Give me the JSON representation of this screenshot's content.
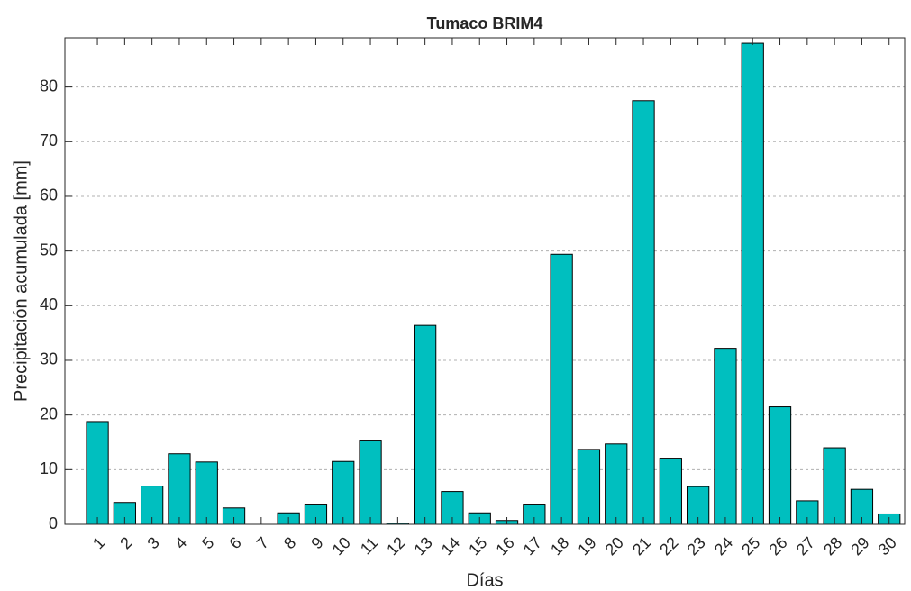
{
  "chart_data": {
    "type": "bar",
    "title": "Tumaco BRIM4",
    "x_label": "Días",
    "y_label": "Precipitación acumulada [mm]",
    "categories": [
      "1",
      "2",
      "3",
      "4",
      "5",
      "6",
      "7",
      "8",
      "9",
      "10",
      "11",
      "12",
      "13",
      "14",
      "15",
      "16",
      "17",
      "18",
      "19",
      "20",
      "21",
      "22",
      "23",
      "24",
      "25",
      "26",
      "27",
      "28",
      "29",
      "30"
    ],
    "values": [
      18.8,
      4,
      7,
      12.9,
      11.4,
      3,
      0,
      2.1,
      3.7,
      11.5,
      15.4,
      0.2,
      36.4,
      6,
      2.1,
      0.7,
      3.7,
      49.4,
      13.7,
      14.7,
      77.5,
      12.1,
      6.9,
      32.2,
      88,
      21.5,
      4.3,
      14,
      6.4,
      1.9
    ],
    "color": "#00bfbf",
    "ylim": [
      0,
      89
    ],
    "yticks": [
      0,
      10,
      20,
      30,
      40,
      50,
      60,
      70,
      80
    ],
    "grid": true
  }
}
